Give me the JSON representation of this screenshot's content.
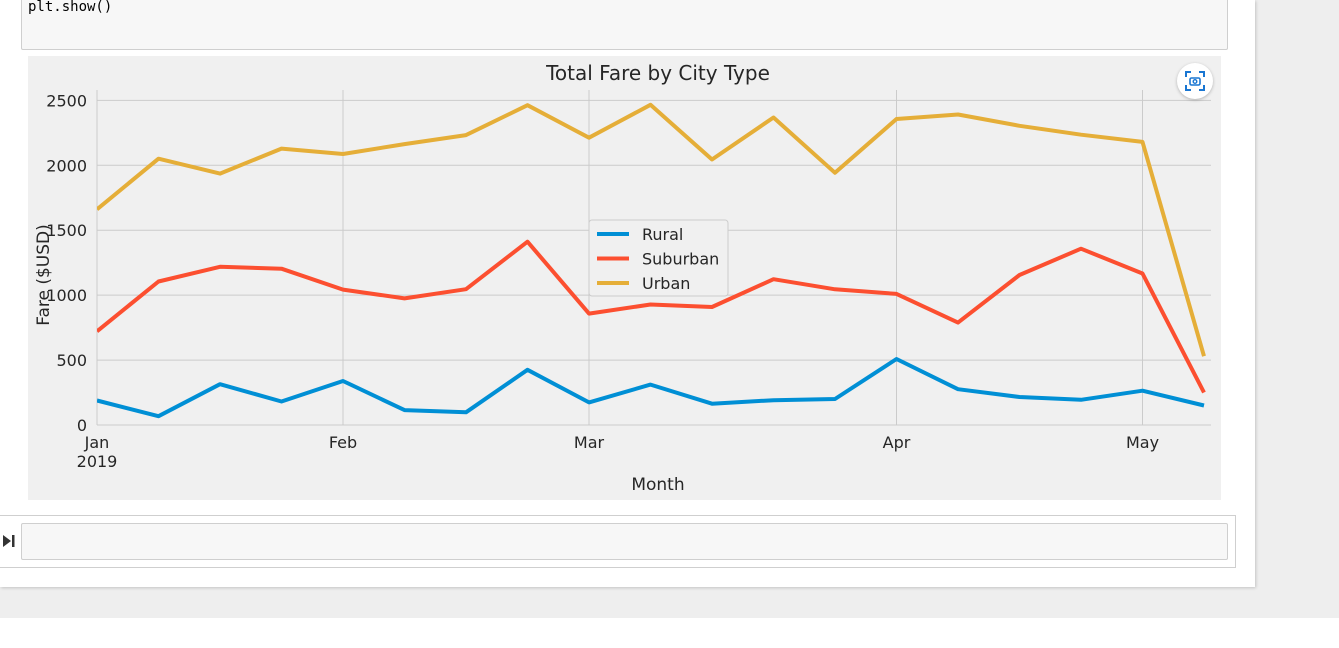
{
  "code_cell": {
    "last_line": "plt.show()"
  },
  "empty_cell": {
    "value": ""
  },
  "icons": {
    "fullscreen": "fullscreen-icon",
    "run": "run-cell-icon"
  },
  "chart_data": {
    "type": "line",
    "title": "Total Fare by City Type",
    "xlabel": "Month",
    "ylabel": "Fare ($USD)",
    "ylim": [
      0,
      2580
    ],
    "yticks": [
      0,
      500,
      1000,
      1500,
      2000,
      2500
    ],
    "xtick_labels": [
      {
        "label": "Jan",
        "sublabel": "2019",
        "week": 0
      },
      {
        "label": "Feb",
        "sublabel": "",
        "week": 4
      },
      {
        "label": "Mar",
        "sublabel": "",
        "week": 8
      },
      {
        "label": "Apr",
        "sublabel": "",
        "week": 13
      },
      {
        "label": "May",
        "sublabel": "",
        "week": 17
      }
    ],
    "x_weeks": [
      0,
      1,
      2,
      3,
      4,
      5,
      6,
      7,
      8,
      9,
      10,
      11,
      12,
      13,
      14,
      15,
      16,
      17,
      18
    ],
    "legend_position": "center",
    "series": [
      {
        "name": "Rural",
        "color": "#008fd5",
        "values": [
          189,
          68,
          314,
          181,
          339,
          115,
          98,
          425,
          174,
          311,
          164,
          191,
          200,
          508,
          276,
          216,
          194,
          264,
          150
        ]
      },
      {
        "name": "Suburban",
        "color": "#fc4f30",
        "values": [
          722,
          1105,
          1218,
          1204,
          1043,
          975,
          1046,
          1412,
          858,
          928,
          909,
          1123,
          1045,
          1010,
          789,
          1155,
          1358,
          1167,
          250
        ]
      },
      {
        "name": "Urban",
        "color": "#e5ae38",
        "values": [
          1661,
          2051,
          1936,
          2129,
          2087,
          2163,
          2233,
          2463,
          2213,
          2466,
          2045,
          2368,
          1942,
          2357,
          2391,
          2304,
          2236,
          2180,
          530
        ]
      }
    ]
  }
}
